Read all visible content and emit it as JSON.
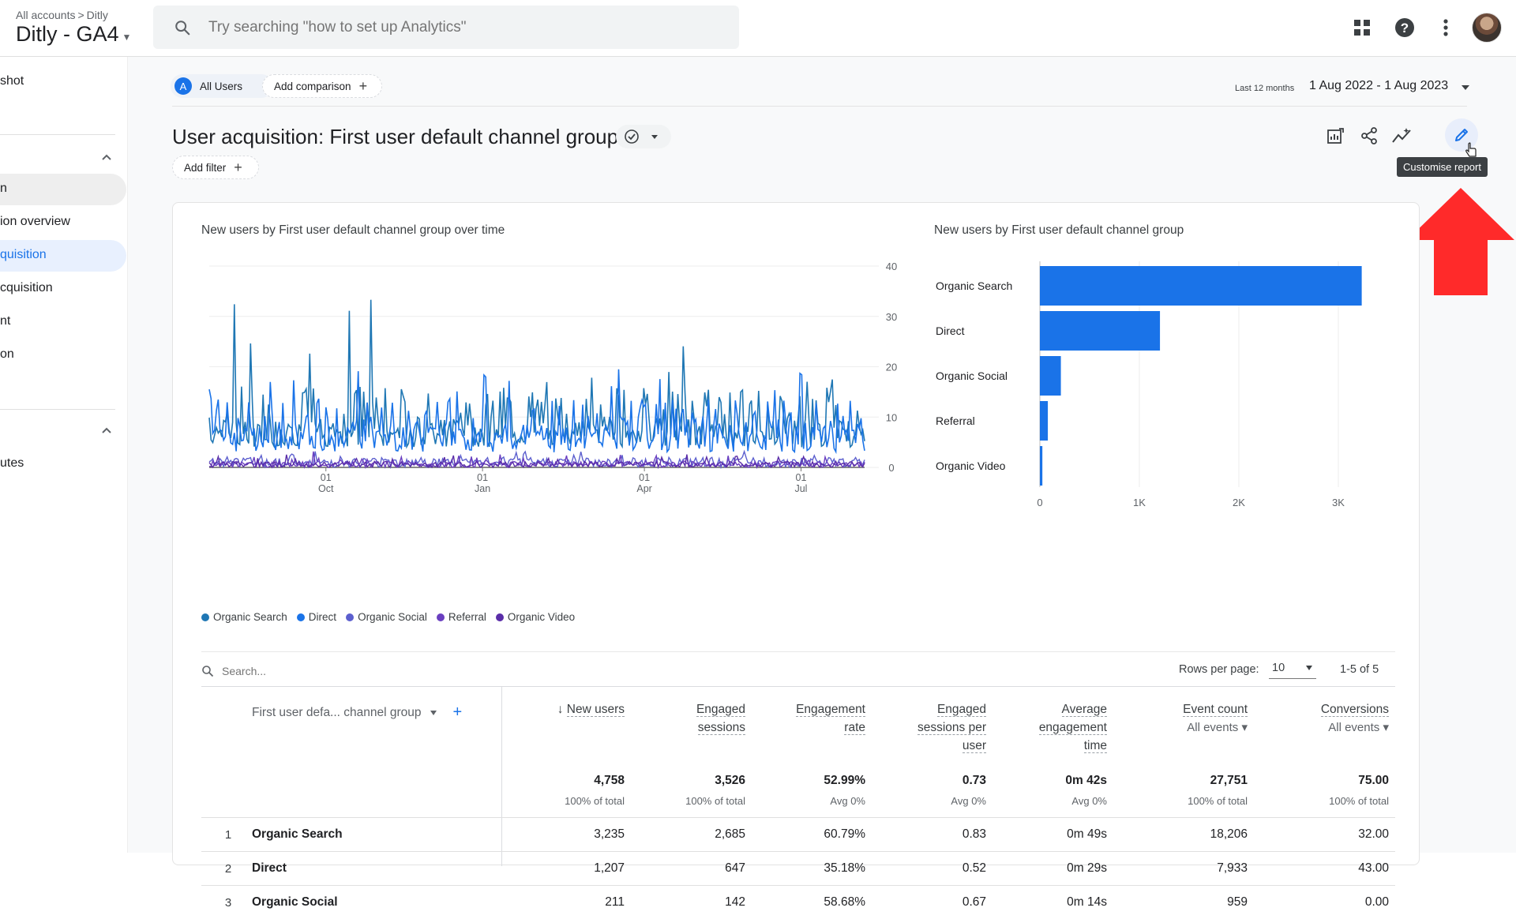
{
  "header": {
    "breadcrumb": [
      "All accounts",
      "Ditly"
    ],
    "breadcrumb_separator": ">",
    "property": "Ditly - GA4",
    "search_placeholder": "Try searching \"how to set up Analytics\""
  },
  "sidebar": {
    "items": [
      "shot",
      "n",
      "ion overview",
      "quisition",
      "cquisition",
      "nt",
      "on",
      "utes"
    ],
    "active_index": 3
  },
  "comparison_bar": {
    "segment_badge": "A",
    "segment": "All Users",
    "add_comparison": "Add comparison",
    "date_caption": "Last 12 months",
    "date_range": "1 Aug 2022 - 1 Aug 2023"
  },
  "report": {
    "title": "User acquisition: First user default channel group",
    "add_filter": "Add filter",
    "tooltip": "Customise report"
  },
  "line_chart": {
    "title": "New users by First user default channel group over time",
    "y_ticks": [
      "40",
      "30",
      "20",
      "10",
      "0"
    ],
    "x_ticks": [
      {
        "day": "01",
        "month": "Oct"
      },
      {
        "day": "01",
        "month": "Jan"
      },
      {
        "day": "01",
        "month": "Apr"
      },
      {
        "day": "01",
        "month": "Jul"
      }
    ],
    "legend": [
      {
        "label": "Organic Search",
        "color": "#1f77b4"
      },
      {
        "label": "Direct",
        "color": "#1a73e8"
      },
      {
        "label": "Organic Social",
        "color": "#5c5fce"
      },
      {
        "label": "Referral",
        "color": "#6a3fc0"
      },
      {
        "label": "Organic Video",
        "color": "#5a2da8"
      }
    ]
  },
  "chart_data": {
    "type": "bar",
    "title": "New users by First user default channel group",
    "orientation": "horizontal",
    "categories": [
      "Organic Search",
      "Direct",
      "Organic Social",
      "Referral",
      "Organic Video"
    ],
    "values": [
      3235,
      1207,
      211,
      80,
      25
    ],
    "x_ticks": [
      "0",
      "1K",
      "2K",
      "3K"
    ],
    "xlim": [
      0,
      3500
    ],
    "color": "#1a73e8",
    "grid": true
  },
  "table": {
    "search_placeholder": "Search...",
    "rows_per_page_label": "Rows per page:",
    "rows_per_page": "10",
    "pagination": "1-5 of 5",
    "dimension_header": "First user defa... channel group",
    "columns": [
      {
        "label_lines": [
          "New users"
        ],
        "sort": "↓",
        "sub": "",
        "total": "4,758",
        "total_sub": "100% of total"
      },
      {
        "label_lines": [
          "Engaged",
          "sessions"
        ],
        "sub": "",
        "total": "3,526",
        "total_sub": "100% of total"
      },
      {
        "label_lines": [
          "Engagement",
          "rate"
        ],
        "sub": "",
        "total": "52.99%",
        "total_sub": "Avg 0%"
      },
      {
        "label_lines": [
          "Engaged",
          "sessions per",
          "user"
        ],
        "sub": "",
        "total": "0.73",
        "total_sub": "Avg 0%"
      },
      {
        "label_lines": [
          "Average",
          "engagement",
          "time"
        ],
        "sub": "",
        "total": "0m 42s",
        "total_sub": "Avg 0%"
      },
      {
        "label_lines": [
          "Event count"
        ],
        "sub": "All events",
        "total": "27,751",
        "total_sub": "100% of total"
      },
      {
        "label_lines": [
          "Conversions"
        ],
        "sub": "All events",
        "total": "75.00",
        "total_sub": "100% of total"
      }
    ],
    "rows": [
      {
        "num": "1",
        "name": "Organic Search",
        "cells": [
          "3,235",
          "2,685",
          "60.79%",
          "0.83",
          "0m 49s",
          "18,206",
          "32.00"
        ]
      },
      {
        "num": "2",
        "name": "Direct",
        "cells": [
          "1,207",
          "647",
          "35.18%",
          "0.52",
          "0m 29s",
          "7,933",
          "43.00"
        ]
      },
      {
        "num": "3",
        "name": "Organic Social",
        "cells": [
          "211",
          "142",
          "58.68%",
          "0.67",
          "0m 14s",
          "959",
          "0.00"
        ]
      }
    ]
  }
}
